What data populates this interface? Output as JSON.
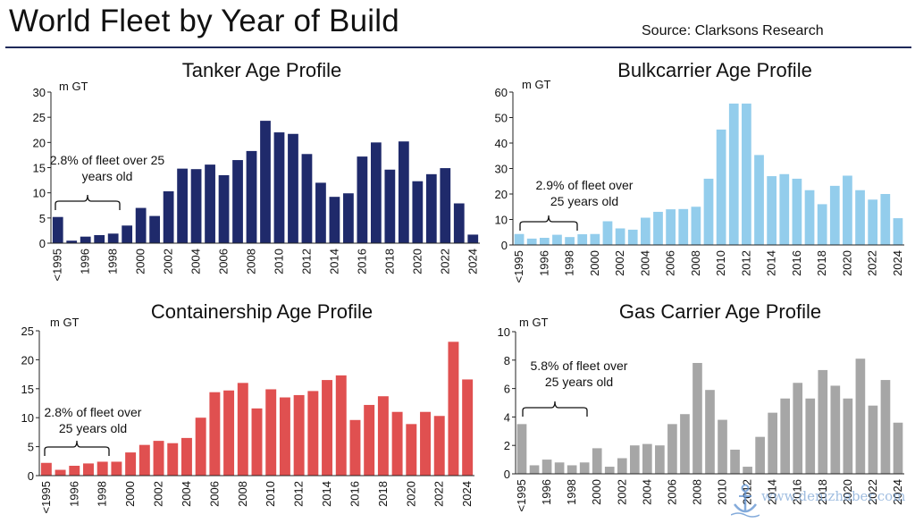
{
  "header": {
    "title": "World Fleet by Year of Build",
    "source": "Source: Clarksons Research"
  },
  "watermark": {
    "text": "www.denizhaber.com"
  },
  "chart_data": [
    {
      "id": "tanker",
      "type": "bar",
      "title": "Tanker Age Profile",
      "ylabel": "m GT",
      "color": "#1f2a6b",
      "ylim": [
        0,
        30
      ],
      "yticks": [
        0,
        5,
        10,
        15,
        20,
        25,
        30
      ],
      "categories": [
        "<1995",
        "1995",
        "1996",
        "1997",
        "1998",
        "1999",
        "2000",
        "2001",
        "2002",
        "2003",
        "2004",
        "2005",
        "2006",
        "2007",
        "2008",
        "2009",
        "2010",
        "2011",
        "2012",
        "2013",
        "2014",
        "2015",
        "2016",
        "2017",
        "2018",
        "2019",
        "2020",
        "2021",
        "2022",
        "2023",
        "2024"
      ],
      "xtick_labels": [
        "<1995",
        "1996",
        "1998",
        "2000",
        "2002",
        "2004",
        "2006",
        "2008",
        "2010",
        "2012",
        "2014",
        "2016",
        "2018",
        "2020",
        "2022",
        "2024"
      ],
      "values": [
        5.2,
        0.5,
        1.3,
        1.6,
        1.9,
        3.5,
        7.0,
        5.4,
        10.3,
        14.8,
        14.7,
        15.6,
        13.5,
        16.5,
        18.3,
        24.3,
        22.0,
        21.7,
        17.7,
        12.0,
        9.2,
        9.9,
        17.2,
        20.0,
        14.6,
        20.2,
        12.3,
        13.7,
        14.9,
        7.9,
        1.7
      ],
      "annotation": {
        "lines": [
          "2.8% of fleet over 25",
          "years old"
        ]
      }
    },
    {
      "id": "bulkcarrier",
      "type": "bar",
      "title": "Bulkcarrier Age Profile",
      "ylabel": "m GT",
      "color": "#93cdec",
      "ylim": [
        0,
        60
      ],
      "yticks": [
        0,
        10,
        20,
        30,
        40,
        50,
        60
      ],
      "categories": [
        "<1995",
        "1995",
        "1996",
        "1997",
        "1998",
        "1999",
        "2000",
        "2001",
        "2002",
        "2003",
        "2004",
        "2005",
        "2006",
        "2007",
        "2008",
        "2009",
        "2010",
        "2011",
        "2012",
        "2013",
        "2014",
        "2015",
        "2016",
        "2017",
        "2018",
        "2019",
        "2020",
        "2021",
        "2022",
        "2023",
        "2024"
      ],
      "xtick_labels": [
        "<1995",
        "1996",
        "1998",
        "2000",
        "2002",
        "2004",
        "2006",
        "2008",
        "2010",
        "2012",
        "2014",
        "2016",
        "2018",
        "2020",
        "2022",
        "2024"
      ],
      "values": [
        4.3,
        2.5,
        2.8,
        4.0,
        3.1,
        4.2,
        4.3,
        9.3,
        6.5,
        6.0,
        10.7,
        13.0,
        14.0,
        14.1,
        15.0,
        26.0,
        45.3,
        55.5,
        55.5,
        35.3,
        27.0,
        27.8,
        26.0,
        21.5,
        16.0,
        23.2,
        27.2,
        21.5,
        17.8,
        20.0,
        10.5
      ],
      "annotation": {
        "lines": [
          "2.9% of fleet over",
          "25 years old"
        ]
      }
    },
    {
      "id": "containership",
      "type": "bar",
      "title": "Containership Age Profile",
      "ylabel": "m GT",
      "color": "#e05050",
      "ylim": [
        0,
        25
      ],
      "yticks": [
        0,
        5,
        10,
        15,
        20,
        25
      ],
      "categories": [
        "<1995",
        "1995",
        "1996",
        "1997",
        "1998",
        "1999",
        "2000",
        "2001",
        "2002",
        "2003",
        "2004",
        "2005",
        "2006",
        "2007",
        "2008",
        "2009",
        "2010",
        "2011",
        "2012",
        "2013",
        "2014",
        "2015",
        "2016",
        "2017",
        "2018",
        "2019",
        "2020",
        "2021",
        "2022",
        "2023",
        "2024"
      ],
      "xtick_labels": [
        "<1995",
        "1996",
        "1998",
        "2000",
        "2002",
        "2004",
        "2006",
        "2008",
        "2010",
        "2012",
        "2014",
        "2016",
        "2018",
        "2020",
        "2022",
        "2024"
      ],
      "values": [
        2.2,
        1.0,
        1.7,
        2.1,
        2.4,
        2.4,
        4.0,
        5.3,
        6.0,
        5.6,
        6.5,
        10.0,
        14.4,
        14.7,
        16.0,
        11.6,
        14.9,
        13.5,
        13.9,
        14.6,
        16.5,
        17.3,
        9.6,
        12.2,
        13.7,
        11.0,
        8.9,
        11.0,
        10.3,
        23.1,
        16.6
      ],
      "annotation": {
        "lines": [
          "2.8% of fleet over",
          "25 years old"
        ]
      }
    },
    {
      "id": "gascarrier",
      "type": "bar",
      "title": "Gas Carrier Age Profile",
      "ylabel": "m GT",
      "color": "#a6a6a6",
      "ylim": [
        0,
        10
      ],
      "yticks": [
        0,
        2,
        4,
        6,
        8,
        10
      ],
      "categories": [
        "<1995",
        "1995",
        "1996",
        "1997",
        "1998",
        "1999",
        "2000",
        "2001",
        "2002",
        "2003",
        "2004",
        "2005",
        "2006",
        "2007",
        "2008",
        "2009",
        "2010",
        "2011",
        "2012",
        "2013",
        "2014",
        "2015",
        "2016",
        "2017",
        "2018",
        "2019",
        "2020",
        "2021",
        "2022",
        "2023",
        "2024"
      ],
      "xtick_labels": [
        "<1995",
        "1996",
        "1998",
        "2000",
        "2002",
        "2004",
        "2006",
        "2008",
        "2010",
        "2012",
        "2014",
        "2016",
        "2018",
        "2020",
        "2022",
        "2024"
      ],
      "values": [
        3.5,
        0.6,
        1.0,
        0.8,
        0.6,
        0.8,
        1.8,
        0.5,
        1.1,
        2.0,
        2.1,
        2.0,
        3.5,
        4.2,
        7.8,
        5.9,
        3.8,
        1.7,
        0.5,
        2.6,
        4.3,
        5.3,
        6.4,
        5.3,
        7.3,
        6.2,
        5.3,
        8.1,
        4.8,
        6.6,
        3.6
      ],
      "annotation": {
        "lines": [
          "5.8% of fleet over",
          "25 years old"
        ]
      }
    }
  ]
}
